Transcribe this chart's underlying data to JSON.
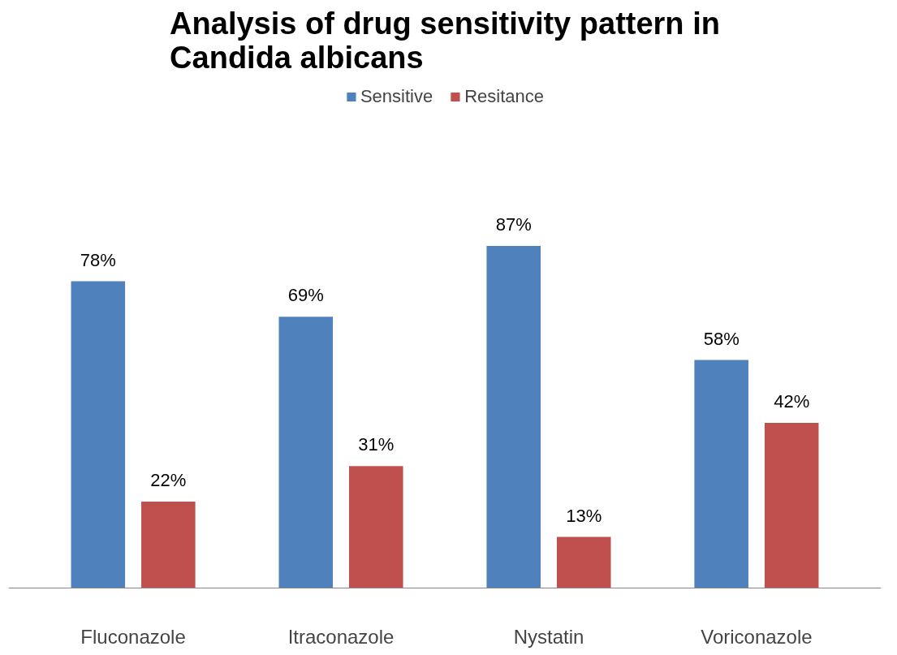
{
  "chart_data": {
    "type": "bar",
    "title": "Analysis of drug sensitivity pattern in Candida albicans",
    "categories": [
      "Fluconazole",
      "Itraconazole",
      "Nystatin",
      "Voriconazole"
    ],
    "legend": "top",
    "grid": false,
    "series": [
      {
        "name": "Sensitive",
        "color": "#4f81bd",
        "values": [
          78,
          69,
          87,
          58
        ],
        "value_labels": [
          "78%",
          "69%",
          "87%",
          "58%"
        ]
      },
      {
        "name": "Resitance",
        "color": "#c0504d",
        "values": [
          22,
          31,
          13,
          42
        ],
        "value_labels": [
          "22%",
          "31%",
          "13%",
          "42%"
        ]
      }
    ]
  }
}
